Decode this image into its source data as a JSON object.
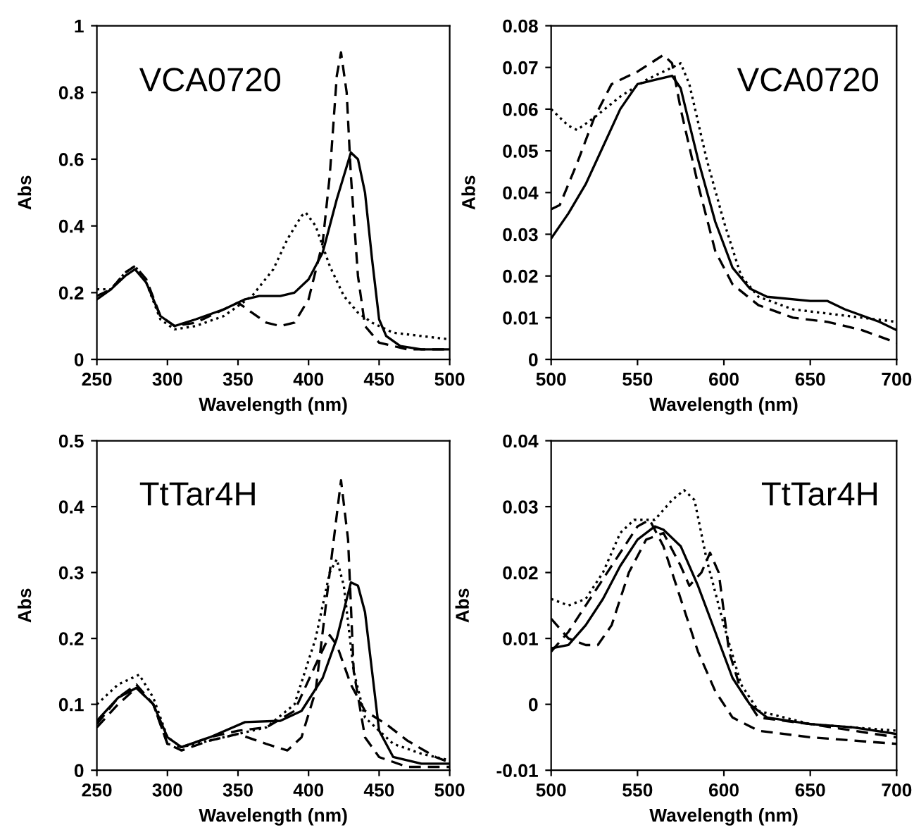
{
  "chart_data": [
    {
      "type": "line",
      "annotations": [
        "VCA0720"
      ],
      "xlabel": "Wavelength (nm)",
      "ylabel": "Abs",
      "xlim": [
        250,
        500
      ],
      "ylim": [
        0,
        1
      ],
      "xticks": [
        250,
        300,
        350,
        400,
        450,
        500
      ],
      "yticks": [
        0,
        0.2,
        0.4,
        0.6,
        0.8,
        1
      ],
      "grid": false,
      "legend": false,
      "series": [
        {
          "color": "#000000",
          "line_style": "solid",
          "x": [
            250,
            260,
            270,
            277,
            285,
            295,
            305,
            320,
            340,
            355,
            365,
            380,
            390,
            400,
            410,
            420,
            430,
            435,
            440,
            445,
            450,
            455,
            465,
            480,
            500
          ],
          "values": [
            0.18,
            0.21,
            0.25,
            0.27,
            0.23,
            0.13,
            0.1,
            0.12,
            0.15,
            0.18,
            0.19,
            0.19,
            0.2,
            0.24,
            0.32,
            0.48,
            0.62,
            0.6,
            0.5,
            0.3,
            0.12,
            0.07,
            0.04,
            0.03,
            0.03
          ]
        },
        {
          "color": "#000000",
          "line_style": "dashed",
          "x": [
            250,
            260,
            270,
            277,
            285,
            295,
            305,
            320,
            340,
            350,
            360,
            370,
            380,
            390,
            400,
            410,
            415,
            420,
            423,
            427,
            430,
            435,
            440,
            450,
            470,
            500
          ],
          "values": [
            0.19,
            0.21,
            0.26,
            0.28,
            0.24,
            0.13,
            0.1,
            0.11,
            0.15,
            0.17,
            0.14,
            0.11,
            0.1,
            0.11,
            0.18,
            0.35,
            0.55,
            0.85,
            0.92,
            0.8,
            0.55,
            0.25,
            0.1,
            0.05,
            0.03,
            0.03
          ]
        },
        {
          "color": "#000000",
          "line_style": "dotted",
          "x": [
            250,
            260,
            270,
            277,
            285,
            295,
            305,
            320,
            340,
            360,
            375,
            385,
            395,
            398,
            405,
            415,
            425,
            435,
            445,
            460,
            480,
            500
          ],
          "values": [
            0.21,
            0.21,
            0.26,
            0.28,
            0.23,
            0.12,
            0.09,
            0.1,
            0.13,
            0.19,
            0.27,
            0.36,
            0.43,
            0.44,
            0.4,
            0.28,
            0.19,
            0.14,
            0.11,
            0.08,
            0.07,
            0.06
          ]
        }
      ]
    },
    {
      "type": "line",
      "annotations": [
        "VCA0720"
      ],
      "xlabel": "Wavelength (nm)",
      "ylabel": "Abs",
      "xlim": [
        500,
        700
      ],
      "ylim": [
        0,
        0.08
      ],
      "xticks": [
        500,
        550,
        600,
        650,
        700
      ],
      "yticks": [
        0,
        0.01,
        0.02,
        0.03,
        0.04,
        0.05,
        0.06,
        0.07,
        0.08
      ],
      "grid": false,
      "legend": false,
      "series": [
        {
          "color": "#000000",
          "line_style": "solid",
          "x": [
            500,
            510,
            520,
            530,
            540,
            550,
            560,
            570,
            575,
            585,
            595,
            605,
            615,
            625,
            650,
            660,
            670,
            690,
            700
          ],
          "values": [
            0.029,
            0.035,
            0.042,
            0.051,
            0.06,
            0.066,
            0.067,
            0.068,
            0.065,
            0.048,
            0.033,
            0.022,
            0.017,
            0.015,
            0.014,
            0.014,
            0.012,
            0.009,
            0.007
          ]
        },
        {
          "color": "#000000",
          "line_style": "dashed",
          "x": [
            500,
            505,
            515,
            525,
            535,
            550,
            565,
            570,
            575,
            585,
            595,
            605,
            620,
            640,
            660,
            680,
            700
          ],
          "values": [
            0.036,
            0.037,
            0.047,
            0.058,
            0.066,
            0.069,
            0.073,
            0.071,
            0.06,
            0.042,
            0.026,
            0.018,
            0.013,
            0.01,
            0.009,
            0.007,
            0.004
          ]
        },
        {
          "color": "#000000",
          "line_style": "dotted",
          "x": [
            500,
            510,
            515,
            525,
            540,
            555,
            570,
            575,
            580,
            590,
            600,
            610,
            620,
            640,
            660,
            680,
            700
          ],
          "values": [
            0.06,
            0.056,
            0.055,
            0.058,
            0.063,
            0.067,
            0.07,
            0.071,
            0.066,
            0.048,
            0.033,
            0.02,
            0.015,
            0.012,
            0.011,
            0.01,
            0.009
          ]
        }
      ]
    },
    {
      "type": "line",
      "annotations": [
        "TtTar4H"
      ],
      "xlabel": "Wavelength (nm)",
      "ylabel": "Abs",
      "xlim": [
        250,
        500
      ],
      "ylim": [
        0,
        0.5
      ],
      "xticks": [
        250,
        300,
        350,
        400,
        450,
        500
      ],
      "yticks": [
        0,
        0.1,
        0.2,
        0.3,
        0.4,
        0.5
      ],
      "grid": false,
      "legend": false,
      "series": [
        {
          "color": "#000000",
          "line_style": "solid",
          "x": [
            250,
            265,
            278,
            290,
            300,
            310,
            330,
            355,
            380,
            395,
            410,
            420,
            430,
            435,
            440,
            445,
            450,
            460,
            480,
            500
          ],
          "values": [
            0.075,
            0.11,
            0.125,
            0.1,
            0.05,
            0.035,
            0.05,
            0.073,
            0.075,
            0.09,
            0.14,
            0.2,
            0.285,
            0.28,
            0.24,
            0.15,
            0.06,
            0.02,
            0.01,
            0.01
          ]
        },
        {
          "color": "#000000",
          "line_style": "dashed",
          "x": [
            250,
            265,
            278,
            290,
            300,
            310,
            330,
            350,
            370,
            385,
            395,
            405,
            415,
            423,
            428,
            432,
            440,
            450,
            470,
            500
          ],
          "values": [
            0.07,
            0.11,
            0.13,
            0.1,
            0.04,
            0.03,
            0.045,
            0.055,
            0.04,
            0.03,
            0.05,
            0.12,
            0.3,
            0.44,
            0.35,
            0.15,
            0.05,
            0.02,
            0.005,
            0.005
          ]
        },
        {
          "color": "#000000",
          "line_style": "dotted",
          "x": [
            250,
            265,
            280,
            290,
            300,
            310,
            330,
            350,
            370,
            390,
            405,
            415,
            420,
            425,
            432,
            440,
            460,
            480,
            500
          ],
          "values": [
            0.1,
            0.13,
            0.145,
            0.11,
            0.05,
            0.035,
            0.045,
            0.055,
            0.065,
            0.1,
            0.2,
            0.3,
            0.32,
            0.28,
            0.15,
            0.08,
            0.04,
            0.025,
            0.015
          ]
        },
        {
          "color": "#000000",
          "line_style": "dashed",
          "x": [
            250,
            265,
            278,
            290,
            300,
            310,
            330,
            350,
            370,
            390,
            405,
            415,
            420,
            430,
            440,
            455,
            470,
            490,
            500
          ],
          "values": [
            0.065,
            0.1,
            0.125,
            0.1,
            0.04,
            0.035,
            0.05,
            0.06,
            0.065,
            0.09,
            0.16,
            0.205,
            0.19,
            0.13,
            0.09,
            0.07,
            0.045,
            0.02,
            0.012
          ]
        }
      ]
    },
    {
      "type": "line",
      "annotations": [
        "TtTar4H"
      ],
      "xlabel": "Wavelength (nm)",
      "ylabel": "Abs",
      "xlim": [
        500,
        700
      ],
      "ylim": [
        -0.01,
        0.04
      ],
      "xticks": [
        500,
        550,
        600,
        650,
        700
      ],
      "yticks": [
        -0.01,
        0,
        0.01,
        0.02,
        0.03,
        0.04
      ],
      "grid": false,
      "legend": false,
      "series": [
        {
          "color": "#000000",
          "line_style": "solid",
          "x": [
            500,
            510,
            520,
            530,
            540,
            550,
            560,
            565,
            575,
            585,
            595,
            605,
            615,
            625,
            650,
            675,
            700
          ],
          "values": [
            0.0085,
            0.009,
            0.012,
            0.016,
            0.021,
            0.025,
            0.027,
            0.0265,
            0.024,
            0.018,
            0.011,
            0.004,
            0.0,
            -0.002,
            -0.003,
            -0.0035,
            -0.0045
          ]
        },
        {
          "color": "#000000",
          "line_style": "dashed",
          "x": [
            500,
            510,
            520,
            530,
            540,
            550,
            557,
            565,
            575,
            585,
            595,
            605,
            620,
            650,
            675,
            700
          ],
          "values": [
            0.008,
            0.011,
            0.015,
            0.019,
            0.023,
            0.027,
            0.028,
            0.024,
            0.016,
            0.008,
            0.002,
            -0.002,
            -0.004,
            -0.005,
            -0.0055,
            -0.006
          ]
        },
        {
          "color": "#000000",
          "line_style": "dotted",
          "x": [
            500,
            510,
            520,
            530,
            540,
            548,
            560,
            570,
            577,
            583,
            590,
            600,
            610,
            620,
            650,
            700
          ],
          "values": [
            0.016,
            0.015,
            0.016,
            0.02,
            0.026,
            0.028,
            0.028,
            0.031,
            0.0325,
            0.031,
            0.022,
            0.012,
            0.003,
            -0.001,
            -0.003,
            -0.004
          ]
        },
        {
          "color": "#000000",
          "line_style": "dashed",
          "x": [
            500,
            510,
            520,
            527,
            535,
            545,
            555,
            565,
            575,
            580,
            587,
            592,
            597,
            603,
            610,
            620,
            650,
            700
          ],
          "values": [
            0.013,
            0.01,
            0.009,
            0.009,
            0.012,
            0.02,
            0.025,
            0.026,
            0.021,
            0.018,
            0.02,
            0.023,
            0.02,
            0.008,
            0.002,
            -0.002,
            -0.003,
            -0.005
          ]
        }
      ]
    }
  ]
}
